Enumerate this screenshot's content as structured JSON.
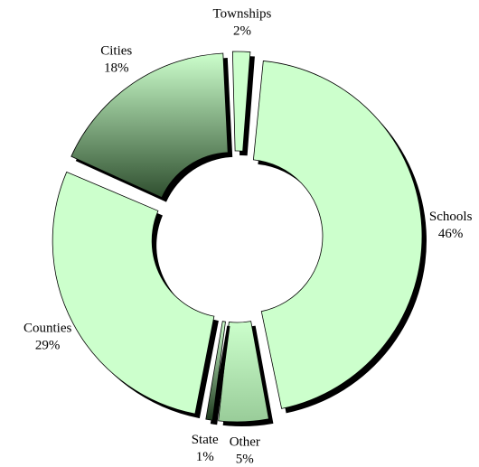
{
  "chart_data": {
    "type": "pie",
    "donut": true,
    "categories": [
      "Schools",
      "Other",
      "State",
      "Counties",
      "Cities",
      "Townships"
    ],
    "values": [
      46,
      5,
      1,
      29,
      18,
      2
    ],
    "value_labels": [
      "46%",
      "5%",
      "1%",
      "29%",
      "18%",
      "2%"
    ],
    "colors": [
      "#ccffcc",
      "#99cc99",
      "#1f3a1f",
      "#ccffcc",
      "#2f4f2f",
      "#ccffcc"
    ]
  }
}
